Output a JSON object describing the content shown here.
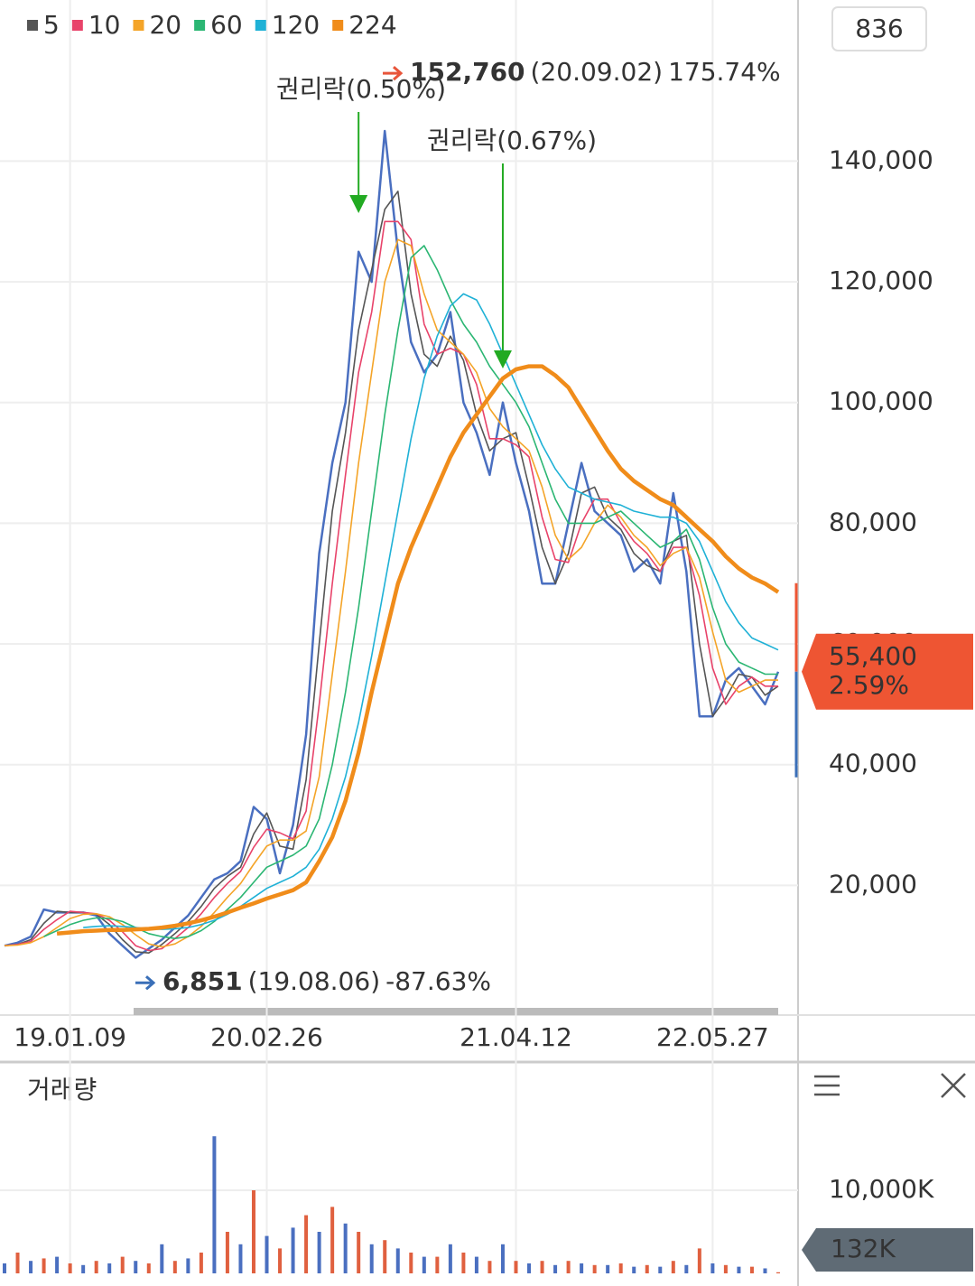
{
  "top_box": "836",
  "chart_data": [
    {
      "type": "line",
      "categories": [
        null,
        null,
        null,
        null,
        null,
        "19.01.09",
        null,
        null,
        null,
        null,
        null,
        null,
        null,
        null,
        null,
        null,
        null,
        null,
        null,
        null,
        "20.02.26",
        null,
        null,
        null,
        null,
        null,
        null,
        null,
        null,
        null,
        null,
        null,
        null,
        null,
        null,
        null,
        null,
        null,
        null,
        "21.04.12",
        null,
        null,
        null,
        null,
        null,
        null,
        null,
        null,
        null,
        null,
        null,
        null,
        null,
        null,
        "22.05.27",
        null,
        null,
        null,
        null,
        null
      ],
      "values": [
        10000,
        10500,
        11500,
        16000,
        15500,
        15500,
        15500,
        15000,
        12000,
        10000,
        8000,
        9500,
        11000,
        13000,
        15000,
        18000,
        21000,
        22000,
        24000,
        33000,
        31000,
        22000,
        30000,
        45000,
        75000,
        90000,
        100000,
        125000,
        120000,
        145000,
        125000,
        110000,
        105000,
        108000,
        115000,
        100000,
        95000,
        88000,
        100000,
        90000,
        82000,
        70000,
        70000,
        80000,
        90000,
        82000,
        80000,
        78000,
        72000,
        74000,
        70000,
        85000,
        72000,
        48000,
        48000,
        54000,
        56000,
        53000,
        50000,
        55400
      ],
      "color": "#4a6fc0",
      "series": [
        {
          "name": "5",
          "color": "#555555",
          "values": [
            10000,
            10200,
            11000,
            13700,
            15700,
            15500,
            15500,
            15200,
            13500,
            11000,
            9000,
            8800,
            10200,
            12000,
            14000,
            16500,
            19500,
            21500,
            23000,
            28500,
            32000,
            26500,
            26000,
            37500,
            60000,
            82000,
            95000,
            112000,
            122000,
            132000,
            135000,
            118000,
            108000,
            106000,
            111000,
            107000,
            98000,
            92000,
            94000,
            95000,
            86000,
            76000,
            70000,
            75000,
            85000,
            86000,
            81000,
            79000,
            75000,
            73000,
            72000,
            77000,
            78000,
            60000,
            48000,
            51000,
            55000,
            54500,
            51500,
            53000
          ]
        },
        {
          "name": "10",
          "color": "#e8436a",
          "values": [
            10000,
            10200,
            10700,
            12700,
            14300,
            15700,
            15500,
            15300,
            14200,
            12300,
            10000,
            9200,
            9500,
            11200,
            13000,
            15300,
            18000,
            20300,
            22300,
            26300,
            29300,
            28700,
            27700,
            32300,
            50000,
            70000,
            88000,
            105000,
            115000,
            130000,
            130000,
            127000,
            113000,
            108000,
            109000,
            108000,
            103000,
            94000,
            94000,
            93000,
            91000,
            81000,
            74000,
            73500,
            80000,
            84000,
            84000,
            80000,
            77000,
            75000,
            72000,
            76000,
            76000,
            68000,
            56000,
            50000,
            53000,
            54500,
            53000,
            53000
          ]
        },
        {
          "name": "20",
          "color": "#f4a428",
          "values": [
            10000,
            10100,
            10500,
            11500,
            13000,
            14500,
            15200,
            15300,
            14800,
            13500,
            11800,
            10300,
            9800,
            10300,
            11500,
            13200,
            15500,
            18000,
            20300,
            23500,
            26500,
            27500,
            27500,
            29000,
            38000,
            55000,
            72000,
            90000,
            105000,
            120000,
            127000,
            126000,
            118000,
            112000,
            110000,
            108000,
            105000,
            99000,
            96000,
            94000,
            92000,
            86000,
            78000,
            74000,
            76000,
            80000,
            83000,
            81000,
            78000,
            76000,
            73000,
            75000,
            76000,
            71000,
            62000,
            54000,
            52000,
            53000,
            54000,
            54000
          ]
        },
        {
          "name": "60",
          "color": "#2bb673",
          "values": [
            null,
            null,
            null,
            11500,
            12500,
            13500,
            14200,
            14600,
            14500,
            14000,
            13000,
            12000,
            11500,
            11200,
            11500,
            12500,
            14000,
            16000,
            18000,
            20500,
            23000,
            24000,
            25000,
            26500,
            31000,
            40000,
            52000,
            66000,
            82000,
            98000,
            112000,
            124000,
            126000,
            122000,
            117000,
            113000,
            110000,
            106000,
            103000,
            100000,
            96000,
            90000,
            84000,
            80000,
            80000,
            80000,
            81000,
            82000,
            80000,
            78000,
            76000,
            77000,
            79000,
            74000,
            66000,
            60000,
            57000,
            56000,
            55000,
            55000
          ]
        },
        {
          "name": "120",
          "color": "#1fb1d6",
          "values": [
            null,
            null,
            null,
            null,
            null,
            null,
            13000,
            13200,
            13300,
            13200,
            13000,
            12800,
            12700,
            12800,
            13000,
            13500,
            14200,
            15200,
            16500,
            18000,
            19500,
            20500,
            21500,
            23000,
            26000,
            31000,
            38000,
            47000,
            58000,
            70000,
            82000,
            94000,
            104000,
            111000,
            116000,
            118000,
            117000,
            113000,
            108000,
            103000,
            98000,
            93000,
            89000,
            86000,
            85000,
            84000,
            83500,
            83000,
            82000,
            81500,
            81000,
            81000,
            80000,
            77000,
            72000,
            67000,
            63500,
            61000,
            60000,
            59000
          ]
        },
        {
          "name": "224",
          "color": "#f08c1a",
          "values": [
            null,
            null,
            null,
            null,
            12000,
            12200,
            12400,
            12500,
            12600,
            12600,
            12700,
            12800,
            13000,
            13300,
            13700,
            14200,
            14800,
            15500,
            16300,
            17000,
            17800,
            18500,
            19200,
            20500,
            24000,
            28000,
            34000,
            42000,
            52000,
            61000,
            70000,
            76000,
            81000,
            86000,
            91000,
            95000,
            98000,
            101000,
            104000,
            105500,
            106000,
            106000,
            104500,
            102500,
            99000,
            95500,
            92000,
            89000,
            87000,
            85500,
            84000,
            83000,
            81000,
            79000,
            77000,
            74500,
            72500,
            71000,
            70000,
            68600
          ]
        }
      ],
      "ylim": [
        0,
        166700
      ],
      "yticks": [
        {
          "value": 20000,
          "label": "20,000"
        },
        {
          "value": 40000,
          "label": "40,000"
        },
        {
          "value": 60000,
          "label": "60,000"
        },
        {
          "value": 80000,
          "label": "80,000"
        },
        {
          "value": 100000,
          "label": "100,000"
        },
        {
          "value": 120000,
          "label": "120,000"
        },
        {
          "value": 140000,
          "label": "140,000"
        }
      ],
      "grid": true,
      "annotations": [
        "권리락(0.50%)",
        "권리락(0.67%)"
      ],
      "annotation_color": "#22aa22",
      "max": {
        "value": 152760,
        "label": "152,760",
        "date": "(20.09.02)",
        "change": "175.74%",
        "color": "#e8553a"
      },
      "min": {
        "value": 6851,
        "label": "6,851",
        "date": "(19.08.06)",
        "change": "-87.63%",
        "color": "#3a6fb8"
      },
      "last": {
        "value": 55400,
        "label": "55,400",
        "change": "2.59%",
        "color": "#ee5533"
      }
    },
    {
      "type": "bar",
      "title": "거래량",
      "values": [
        1200,
        2500,
        1500,
        1800,
        2000,
        1200,
        1000,
        1500,
        1200,
        2000,
        1500,
        1200,
        3500,
        1500,
        1800,
        2500,
        16500,
        5000,
        3500,
        10000,
        4500,
        3000,
        5500,
        7000,
        5000,
        8000,
        6000,
        5000,
        3500,
        4000,
        3000,
        2500,
        2000,
        2000,
        3500,
        2500,
        2000,
        1500,
        3500,
        1500,
        1200,
        1500,
        1000,
        1500,
        1200,
        1000,
        1000,
        1200,
        800,
        1000,
        800,
        1500,
        1000,
        3000,
        1200,
        1000,
        800,
        800,
        600,
        132
      ],
      "color": "#e0603f",
      "ylim": [
        0,
        25000
      ],
      "yticks": [
        {
          "value": 10000,
          "label": "10,000K"
        }
      ],
      "grid": true,
      "last": {
        "value": 132,
        "label": "132K"
      }
    }
  ]
}
